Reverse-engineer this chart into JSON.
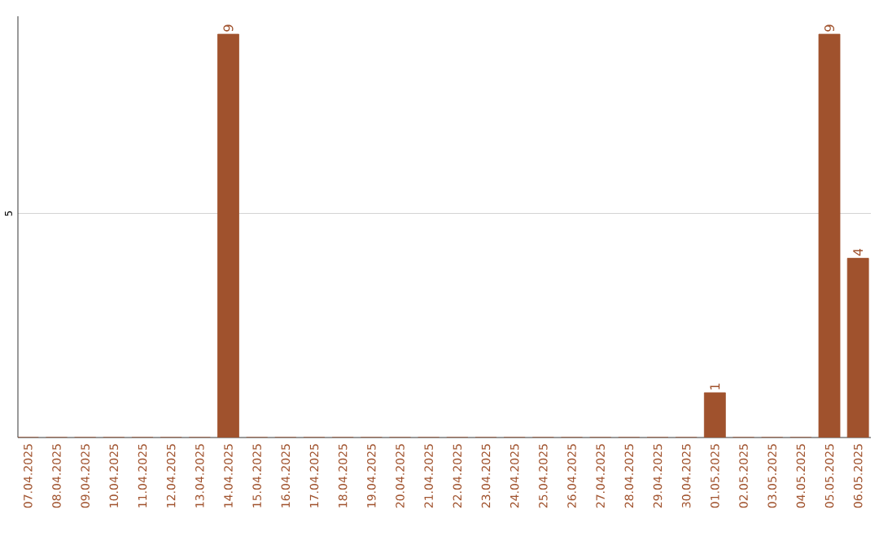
{
  "chart_data": {
    "type": "bar",
    "categories": [
      "07.04.2025",
      "08.04.2025",
      "09.04.2025",
      "10.04.2025",
      "11.04.2025",
      "12.04.2025",
      "13.04.2025",
      "14.04.2025",
      "15.04.2025",
      "16.04.2025",
      "17.04.2025",
      "18.04.2025",
      "19.04.2025",
      "20.04.2025",
      "21.04.2025",
      "22.04.2025",
      "23.04.2025",
      "24.04.2025",
      "25.04.2025",
      "26.04.2025",
      "27.04.2025",
      "28.04.2025",
      "29.04.2025",
      "30.04.2025",
      "01.05.2025",
      "02.05.2025",
      "03.05.2025",
      "04.05.2025",
      "05.05.2025",
      "06.05.2025"
    ],
    "values": [
      0,
      0,
      0,
      0,
      0,
      0,
      0,
      9,
      0,
      0,
      0,
      0,
      0,
      0,
      0,
      0,
      0,
      0,
      0,
      0,
      0,
      0,
      0,
      0,
      1,
      0,
      0,
      0,
      9,
      4
    ],
    "value_labels": [
      null,
      null,
      null,
      null,
      null,
      null,
      null,
      "9",
      null,
      null,
      null,
      null,
      null,
      null,
      null,
      null,
      null,
      null,
      null,
      null,
      null,
      null,
      null,
      null,
      "1",
      null,
      null,
      null,
      "9",
      "4"
    ],
    "color": "#a0522d",
    "ylim": [
      0,
      9.4
    ],
    "yticks": [
      5
    ],
    "grid": "y"
  }
}
